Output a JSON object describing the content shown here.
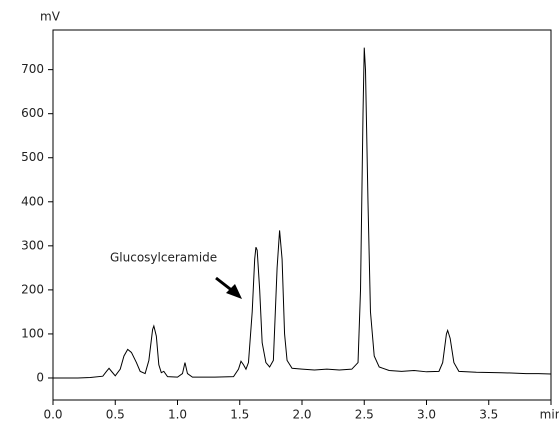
{
  "chart_data": {
    "type": "line",
    "y_label": "mV",
    "annotation": "Glucosylceramide",
    "x": [
      0.0,
      0.1,
      0.2,
      0.3,
      0.4,
      0.43,
      0.45,
      0.47,
      0.5,
      0.54,
      0.57,
      0.6,
      0.63,
      0.67,
      0.7,
      0.74,
      0.77,
      0.8,
      0.81,
      0.83,
      0.85,
      0.87,
      0.89,
      0.92,
      1.0,
      1.04,
      1.06,
      1.08,
      1.12,
      1.3,
      1.45,
      1.49,
      1.51,
      1.53,
      1.55,
      1.57,
      1.6,
      1.62,
      1.63,
      1.64,
      1.66,
      1.68,
      1.71,
      1.74,
      1.77,
      1.8,
      1.82,
      1.84,
      1.86,
      1.88,
      1.92,
      2.0,
      2.1,
      2.2,
      2.3,
      2.4,
      2.45,
      2.47,
      2.49,
      2.5,
      2.51,
      2.53,
      2.55,
      2.58,
      2.62,
      2.7,
      2.8,
      2.9,
      3.0,
      3.1,
      3.13,
      3.16,
      3.17,
      3.19,
      3.22,
      3.26,
      3.4,
      3.6,
      3.8,
      3.9,
      4.0
    ],
    "values": [
      0,
      0,
      0,
      1,
      4,
      15,
      22,
      15,
      5,
      20,
      50,
      65,
      58,
      35,
      15,
      10,
      40,
      110,
      118,
      95,
      30,
      12,
      15,
      3,
      2,
      10,
      35,
      10,
      2,
      2,
      3,
      20,
      38,
      30,
      20,
      35,
      150,
      270,
      297,
      290,
      200,
      80,
      35,
      25,
      40,
      250,
      335,
      270,
      100,
      40,
      22,
      20,
      18,
      20,
      18,
      20,
      35,
      200,
      600,
      750,
      700,
      400,
      150,
      50,
      25,
      17,
      15,
      17,
      14,
      15,
      35,
      100,
      108,
      90,
      35,
      15,
      13,
      12,
      10,
      10,
      9
    ],
    "color": "#000000",
    "xlim": [
      0,
      4.0
    ],
    "xticks": [
      {
        "value": 0,
        "label": "0.0"
      },
      0.5,
      {
        "value": 1,
        "label": "1.0"
      },
      1.5,
      {
        "value": 2,
        "label": "2.0"
      },
      2.5,
      {
        "value": 3,
        "label": "3.0"
      },
      3.5,
      {
        "value": 4,
        "label": "min"
      }
    ],
    "ylim": [
      -50,
      790
    ],
    "yticks": [
      0,
      100,
      200,
      300,
      400,
      500,
      600,
      700
    ]
  }
}
